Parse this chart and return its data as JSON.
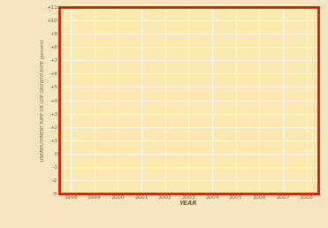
{
  "title": "",
  "xlabel": "YEAR",
  "ylabel": "UNEMPLOYMENT RATE OR GDP GROWTH RATE (percent)",
  "xlim": [
    1997.5,
    2008.5
  ],
  "ylim": [
    -3,
    11
  ],
  "yticks": [
    -3,
    -2,
    -1,
    0,
    1,
    2,
    3,
    4,
    5,
    6,
    7,
    8,
    9,
    10,
    11
  ],
  "ytick_labels": [
    "-3",
    "-2",
    "-1",
    "0",
    "+1",
    "+2",
    "+3",
    "+4",
    "+5",
    "+6",
    "+7",
    "+8",
    "+9",
    "+10",
    "+11"
  ],
  "xticks": [
    1998,
    1999,
    2000,
    2001,
    2002,
    2003,
    2004,
    2005,
    2006,
    2007,
    2008
  ],
  "xtick_labels": [
    "1998",
    "1999",
    "2000",
    "2001",
    "2002",
    "2003",
    "2004",
    "2005",
    "2006",
    "2007",
    "2008"
  ],
  "plot_bg_color": "#fde8b0",
  "border_color": "#cc2200",
  "grid_color": "#ffffff",
  "tick_label_color": "#666644",
  "axis_label_color": "#666644",
  "outer_bg_color": "#f5e6c0"
}
